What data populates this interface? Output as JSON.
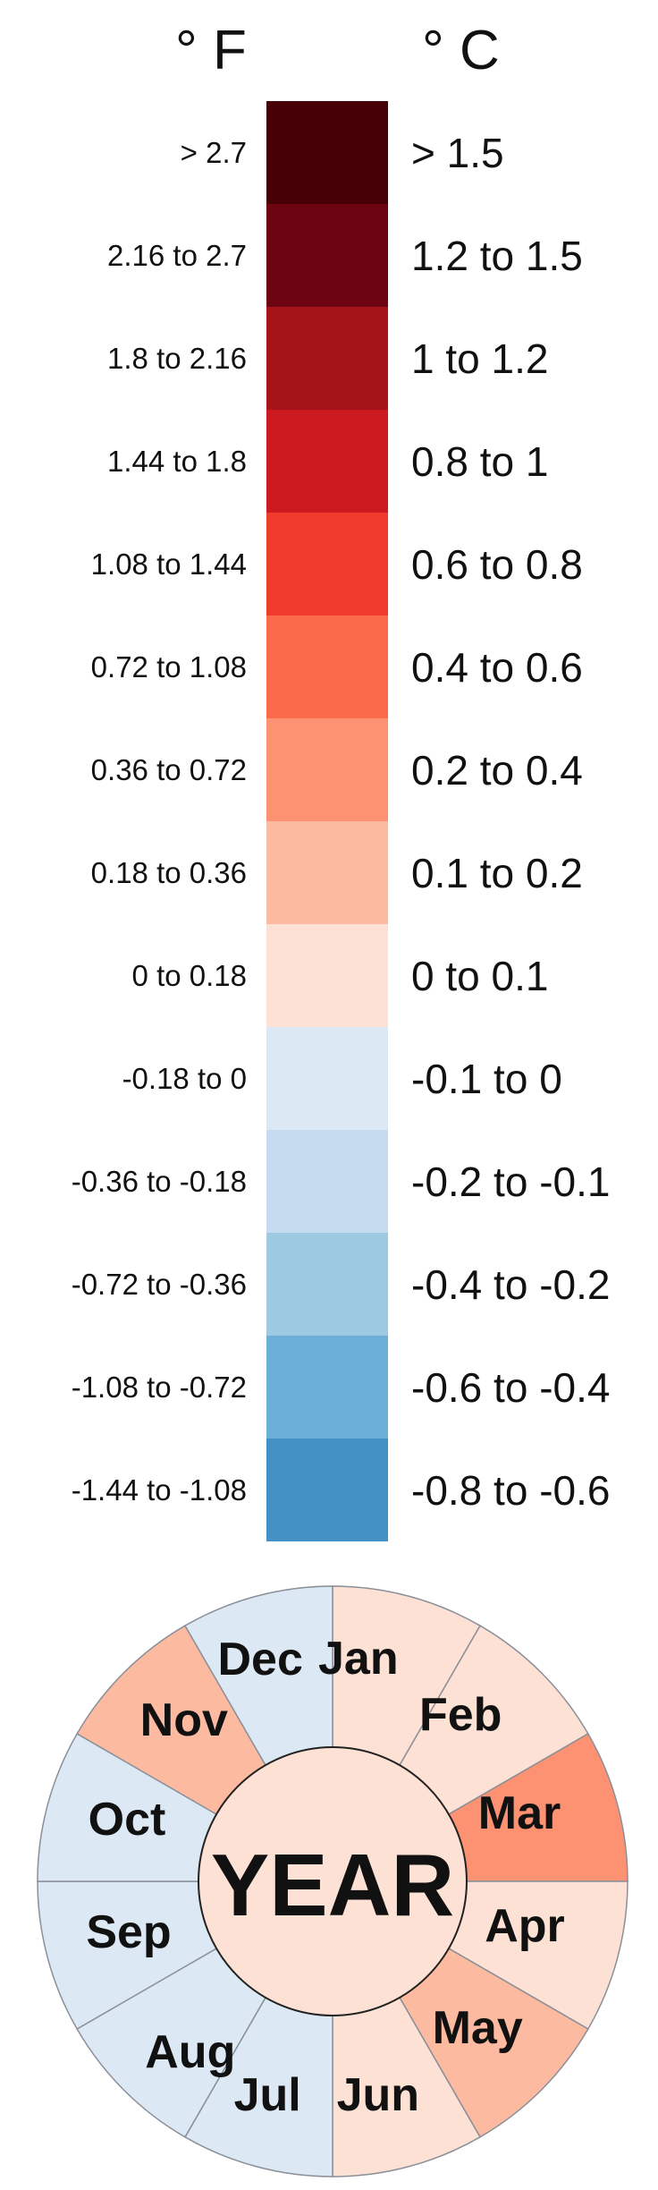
{
  "chart_data": [
    {
      "type": "legend",
      "unit_left": "° F",
      "unit_right": "° C",
      "bins": [
        {
          "f": "> 2.7",
          "c": "> 1.5",
          "color": "#470006"
        },
        {
          "f": "2.16 to 2.7",
          "c": "1.2 to 1.5",
          "color": "#6d0412"
        },
        {
          "f": "1.8 to 2.16",
          "c": "1 to 1.2",
          "color": "#a51419"
        },
        {
          "f": "1.44 to 1.8",
          "c": "0.8 to 1",
          "color": "#cd1a20"
        },
        {
          "f": "1.08 to 1.44",
          "c": "0.6 to 0.8",
          "color": "#ef3b2c"
        },
        {
          "f": "0.72 to 1.08",
          "c": "0.4 to 0.6",
          "color": "#fb6a4a"
        },
        {
          "f": "0.36 to 0.72",
          "c": "0.2 to 0.4",
          "color": "#fc9272"
        },
        {
          "f": "0.18 to 0.36",
          "c": "0.1 to 0.2",
          "color": "#fcbba1"
        },
        {
          "f": "0 to 0.18",
          "c": "0 to 0.1",
          "color": "#fde1d4"
        },
        {
          "f": "-0.18 to 0",
          "c": "-0.1 to 0",
          "color": "#dce9f5"
        },
        {
          "f": "-0.36 to -0.18",
          "c": "-0.2 to -0.1",
          "color": "#c6dbef"
        },
        {
          "f": "-0.72 to -0.36",
          "c": "-0.4 to -0.2",
          "color": "#9ecae1"
        },
        {
          "f": "-1.08 to -0.72",
          "c": "-0.6 to -0.4",
          "color": "#6baed6"
        },
        {
          "f": "-1.44 to -1.08",
          "c": "-0.8 to -0.6",
          "color": "#4292c6"
        }
      ]
    },
    {
      "type": "pie",
      "center_label": "YEAR",
      "center_color": "#fde1d4",
      "months": [
        {
          "label": "Jan",
          "color": "#fde1d4"
        },
        {
          "label": "Feb",
          "color": "#fde1d4"
        },
        {
          "label": "Mar",
          "color": "#fc9272"
        },
        {
          "label": "Apr",
          "color": "#fde1d4"
        },
        {
          "label": "May",
          "color": "#fcbba1"
        },
        {
          "label": "Jun",
          "color": "#fde1d4"
        },
        {
          "label": "Jul",
          "color": "#dce9f5"
        },
        {
          "label": "Aug",
          "color": "#dce9f5"
        },
        {
          "label": "Sep",
          "color": "#dce9f5"
        },
        {
          "label": "Oct",
          "color": "#dce9f5"
        },
        {
          "label": "Nov",
          "color": "#fcbba1"
        },
        {
          "label": "Dec",
          "color": "#dce9f5"
        }
      ]
    }
  ]
}
